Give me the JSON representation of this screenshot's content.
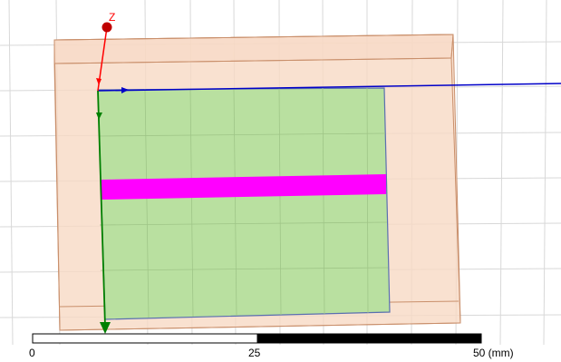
{
  "viewport": {
    "background": "#ffffff",
    "grid_color": "#d8d8d8"
  },
  "axes": {
    "z_label": "Z",
    "z_color": "#ff0000",
    "x_color": "#0000c8",
    "y_color": "#008000"
  },
  "model": {
    "substrate_fill": "#f7d9c4",
    "substrate_stroke": "#c98f6b",
    "ground_fill": "#b9e0a0",
    "ground_stroke": "#5a6fb0",
    "strip_fill": "#ff00ff"
  },
  "scale_bar": {
    "labels": [
      "0",
      "25",
      "50 (mm)"
    ],
    "color_light": "#ffffff",
    "color_dark": "#000000"
  }
}
